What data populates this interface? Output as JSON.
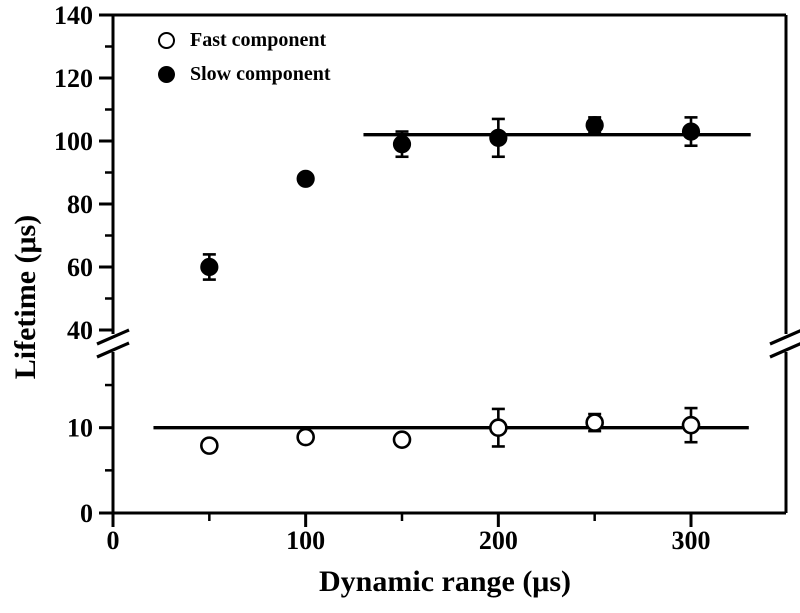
{
  "figure": {
    "background": "#ffffff",
    "ink": "#000000"
  },
  "chart_data": {
    "type": "scatter",
    "title": "",
    "xlabel": "Dynamic range (μs)",
    "ylabel": "Lifetime (μs)",
    "grid": false,
    "legend_position": "top-left-inside",
    "x_axis": {
      "min": 0,
      "max": 349,
      "major_ticks": [
        0,
        100,
        200,
        300
      ],
      "minor_ticks": [
        50,
        150,
        250
      ]
    },
    "y_axis": {
      "broken": true,
      "break_between": [
        17,
        40
      ],
      "lower_section": {
        "min": 0,
        "max": 17,
        "major_ticks": [
          0,
          10
        ],
        "minor_ticks": [
          5,
          15
        ]
      },
      "upper_section": {
        "min": 40,
        "max": 140,
        "major_ticks": [
          40,
          60,
          80,
          100,
          120,
          140
        ],
        "minor_ticks": [
          50,
          70,
          90,
          110,
          130
        ]
      }
    },
    "series": [
      {
        "name": "Fast component",
        "marker": "open-circle",
        "x": [
          50,
          100,
          150,
          200,
          250,
          300
        ],
        "y": [
          7.9,
          8.9,
          8.6,
          10.0,
          10.6,
          10.3
        ],
        "yerr": [
          0.6,
          0.6,
          0.6,
          2.2,
          1.0,
          2.0
        ],
        "fit_line": {
          "y": 10,
          "x_start": 21,
          "x_end": 330
        }
      },
      {
        "name": "Slow component",
        "marker": "filled-circle",
        "x": [
          50,
          100,
          150,
          200,
          250,
          300
        ],
        "y": [
          60,
          88,
          99,
          101,
          105,
          103
        ],
        "yerr": [
          4,
          1,
          4,
          6,
          2.5,
          4.5
        ],
        "fit_line": {
          "y": 102,
          "x_start": 130,
          "x_end": 331
        }
      }
    ]
  }
}
